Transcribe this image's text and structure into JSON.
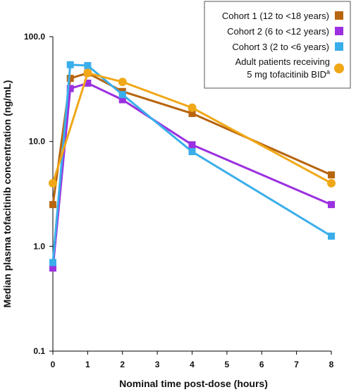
{
  "chart_data": {
    "type": "line",
    "xlabel": "Nominal time post-dose (hours)",
    "ylabel": "Median plasma tofacitinib concentration (ng/mL)",
    "y_scale": "log",
    "xlim": [
      0,
      8
    ],
    "ylim": [
      0.1,
      100
    ],
    "x_ticks": [
      "0",
      "1",
      "2",
      "3",
      "4",
      "5",
      "6",
      "7",
      "8"
    ],
    "y_ticks": [
      "0.1",
      "1.0",
      "10.0",
      "100.0"
    ],
    "grid": false,
    "legend_position": "top-right",
    "series": [
      {
        "name": "Cohort 1 (12 to <18 years)",
        "color": "#b8650f",
        "marker": "square",
        "x": [
          0,
          0.5,
          1,
          2,
          4,
          8
        ],
        "y": [
          2.5,
          40,
          45,
          30,
          18.5,
          4.8
        ]
      },
      {
        "name": "Cohort 2 (6 to <12 years)",
        "color": "#9b30e0",
        "marker": "square",
        "x": [
          0,
          0.5,
          1,
          2,
          4,
          8
        ],
        "y": [
          0.62,
          32,
          36,
          25,
          9.3,
          2.5
        ]
      },
      {
        "name": "Cohort 3 (2 to <6 years)",
        "color": "#3aaeea",
        "marker": "square",
        "x": [
          0,
          0.5,
          1,
          2,
          4,
          8
        ],
        "y": [
          0.7,
          54,
          53,
          28,
          8,
          1.25
        ]
      },
      {
        "name_line1": "Adult patients receiving",
        "name_line2": "5 mg tofacitinib BID",
        "name_sup": "a",
        "color": "#f0a818",
        "marker": "circle",
        "x": [
          0,
          1,
          2,
          4,
          8
        ],
        "y": [
          4,
          45,
          37,
          21,
          4
        ]
      }
    ]
  }
}
